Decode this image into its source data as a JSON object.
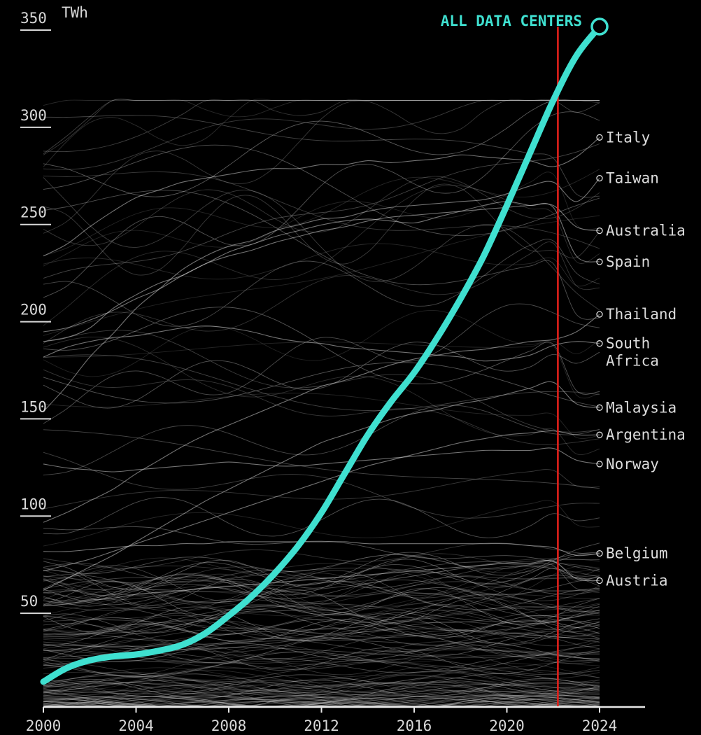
{
  "chart_data": {
    "type": "line",
    "unit": "TWh",
    "xlim": [
      2000,
      2024
    ],
    "ylim": [
      0,
      350
    ],
    "x_ticks": [
      "2000",
      "2004",
      "2008",
      "2012",
      "2016",
      "2020",
      "2024"
    ],
    "y_ticks": [
      "50",
      "100",
      "150",
      "200",
      "250",
      "300",
      "350"
    ],
    "grid": false,
    "colors": {
      "background": "#000000",
      "highlight": "#3fe0d0",
      "marker_line": "#e0201a",
      "background_lines": "#bdbdbd"
    },
    "marker_year": 2022.2,
    "highlight_series": {
      "name": "ALL DATA CENTERS",
      "x": [
        2000,
        2001,
        2002,
        2003,
        2004,
        2005,
        2006,
        2007,
        2008,
        2009,
        2010,
        2011,
        2012,
        2013,
        2014,
        2015,
        2016,
        2017,
        2018,
        2019,
        2020,
        2021,
        2022,
        2023,
        2024
      ],
      "y": [
        13,
        20,
        24,
        26,
        27,
        29,
        32,
        38,
        47,
        57,
        69,
        83,
        100,
        120,
        140,
        157,
        172,
        190,
        210,
        232,
        258,
        285,
        312,
        335,
        350
      ]
    },
    "labeled_series": [
      {
        "name": "Italy",
        "y": [
          232,
          238,
          247,
          255,
          262,
          266,
          270,
          272,
          274,
          276,
          277,
          277,
          279,
          279,
          281,
          280,
          281,
          282,
          284,
          283,
          282,
          281,
          278,
          283,
          293
        ]
      },
      {
        "name": "Taiwan",
        "y": [
          152,
          165,
          180,
          192,
          205,
          215,
          225,
          232,
          237,
          240,
          245,
          248,
          251,
          252,
          255,
          257,
          258,
          259,
          260,
          261,
          264,
          268,
          270,
          260,
          272
        ]
      },
      {
        "name": "Australia",
        "y": [
          188,
          190,
          195,
          205,
          212,
          218,
          222,
          228,
          232,
          235,
          239,
          242,
          245,
          247,
          250,
          252,
          253,
          254,
          255,
          256,
          257,
          258,
          258,
          247,
          245
        ]
      },
      {
        "name": "Spain",
        "y": [
          193,
          195,
          199,
          204,
          210,
          215,
          222,
          228,
          234,
          238,
          242,
          245,
          248,
          250,
          251,
          250,
          249,
          252,
          255,
          258,
          260,
          258,
          257,
          232,
          229
        ]
      },
      {
        "name": "Thailand",
        "y": [
          95,
          100,
          106,
          112,
          120,
          127,
          134,
          140,
          145,
          150,
          155,
          160,
          165,
          168,
          172,
          176,
          179,
          181,
          183,
          184,
          186,
          188,
          189,
          193,
          202
        ]
      },
      {
        "name": "South Africa",
        "y": [
          180,
          185,
          188,
          190,
          191,
          193,
          195,
          196,
          195,
          193,
          190,
          188,
          187,
          185,
          184,
          183,
          182,
          181,
          180,
          178,
          179,
          181,
          186,
          188,
          187
        ]
      },
      {
        "name": "Malaysia",
        "y": [
          60,
          66,
          72,
          78,
          85,
          92,
          99,
          106,
          112,
          118,
          124,
          130,
          136,
          140,
          144,
          148,
          151,
          153,
          156,
          158,
          161,
          164,
          167,
          156,
          154
        ]
      },
      {
        "name": "Argentina",
        "y": [
          70,
          73,
          76,
          80,
          84,
          88,
          92,
          96,
          100,
          104,
          108,
          112,
          116,
          120,
          124,
          127,
          130,
          133,
          136,
          138,
          140,
          141,
          142,
          140,
          140
        ]
      },
      {
        "name": "Norway",
        "y": [
          125,
          123,
          122,
          121,
          122,
          123,
          124,
          125,
          126,
          125,
          124,
          124,
          125,
          126,
          127,
          128,
          129,
          130,
          131,
          132,
          132,
          132,
          133,
          127,
          125
        ]
      },
      {
        "name": "Belgium",
        "y": [
          80,
          80,
          81,
          82,
          83,
          83,
          84,
          84,
          85,
          85,
          85,
          85,
          85,
          85,
          84,
          84,
          84,
          84,
          84,
          84,
          84,
          83,
          82,
          78,
          79
        ]
      },
      {
        "name": "Austria",
        "y": [
          52,
          53,
          55,
          56,
          58,
          59,
          60,
          61,
          62,
          63,
          64,
          65,
          66,
          67,
          68,
          69,
          70,
          71,
          72,
          73,
          74,
          74,
          75,
          66,
          65
        ]
      }
    ]
  }
}
